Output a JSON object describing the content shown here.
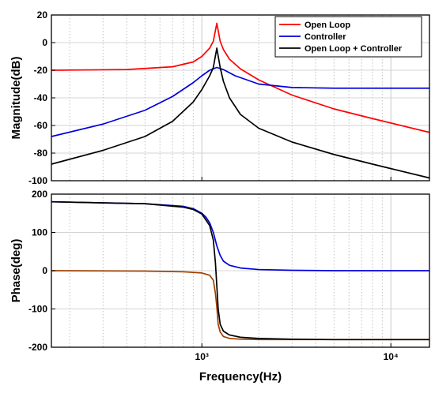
{
  "chart_data": [
    {
      "type": "line",
      "xscale": "log",
      "xlim": [
        160,
        16000
      ],
      "ylim": [
        -100,
        20
      ],
      "yticks": [
        20,
        0,
        -20,
        -40,
        -60,
        -80,
        -100
      ],
      "ylabel": "Magnitude(dB)",
      "grid": true,
      "legend": "top-right",
      "series": [
        {
          "name": "Open Loop",
          "color": "#ff0000",
          "x": [
            160,
            400,
            700,
            900,
            1000,
            1100,
            1150,
            1200,
            1250,
            1300,
            1400,
            1600,
            2000,
            3000,
            5000,
            8000,
            16000
          ],
          "y": [
            -20,
            -19.5,
            -17.5,
            -14,
            -10,
            -4,
            1,
            14,
            1,
            -5,
            -12,
            -19,
            -27,
            -38,
            -48,
            -55,
            -65
          ]
        },
        {
          "name": "Controller",
          "color": "#0000dd",
          "x": [
            160,
            300,
            500,
            700,
            900,
            1000,
            1100,
            1200,
            1300,
            1500,
            2000,
            3000,
            5000,
            16000
          ],
          "y": [
            -68,
            -59,
            -49,
            -39,
            -29,
            -24,
            -20,
            -18,
            -19.5,
            -24,
            -30,
            -32.5,
            -33,
            -33
          ]
        },
        {
          "name": "Open Loop + Controller",
          "color": "#000000",
          "x": [
            160,
            300,
            500,
            700,
            900,
            1000,
            1100,
            1150,
            1200,
            1250,
            1300,
            1400,
            1600,
            2000,
            3000,
            5000,
            8000,
            16000
          ],
          "y": [
            -88,
            -78,
            -68,
            -57,
            -43,
            -34,
            -24,
            -18,
            -4,
            -18,
            -28,
            -40,
            -52,
            -62,
            -72,
            -81,
            -88,
            -98
          ]
        }
      ]
    },
    {
      "type": "line",
      "xscale": "log",
      "xlim": [
        160,
        16000
      ],
      "ylim": [
        -200,
        200
      ],
      "yticks": [
        200,
        100,
        0,
        -100,
        -200
      ],
      "xticks": [
        "10³",
        "10⁴"
      ],
      "xlabel": "Frequency(Hz)",
      "ylabel": "Phase(deg)",
      "grid": true,
      "series": [
        {
          "name": "Open Loop",
          "color": "#a04000",
          "x": [
            160,
            500,
            800,
            1000,
            1100,
            1150,
            1180,
            1200,
            1220,
            1250,
            1300,
            1400,
            1600,
            2000,
            5000,
            16000
          ],
          "y": [
            0,
            -1,
            -3,
            -6,
            -12,
            -25,
            -60,
            -95,
            -140,
            -160,
            -172,
            -177,
            -179,
            -180,
            -180,
            -180
          ]
        },
        {
          "name": "Controller",
          "color": "#0000dd",
          "x": [
            160,
            500,
            800,
            900,
            1000,
            1050,
            1100,
            1150,
            1200,
            1250,
            1300,
            1400,
            1600,
            2000,
            3000,
            5000,
            16000
          ],
          "y": [
            180,
            175,
            168,
            162,
            150,
            140,
            125,
            100,
            65,
            40,
            25,
            14,
            7,
            3,
            1,
            0,
            0
          ]
        },
        {
          "name": "Open Loop + Controller",
          "color": "#000000",
          "x": [
            160,
            500,
            800,
            900,
            1000,
            1100,
            1150,
            1180,
            1200,
            1220,
            1250,
            1300,
            1400,
            1600,
            2000,
            3000,
            5000,
            16000
          ],
          "y": [
            180,
            175,
            166,
            160,
            148,
            118,
            80,
            20,
            -40,
            -100,
            -140,
            -158,
            -168,
            -174,
            -177,
            -179,
            -180,
            -180
          ]
        }
      ]
    }
  ]
}
